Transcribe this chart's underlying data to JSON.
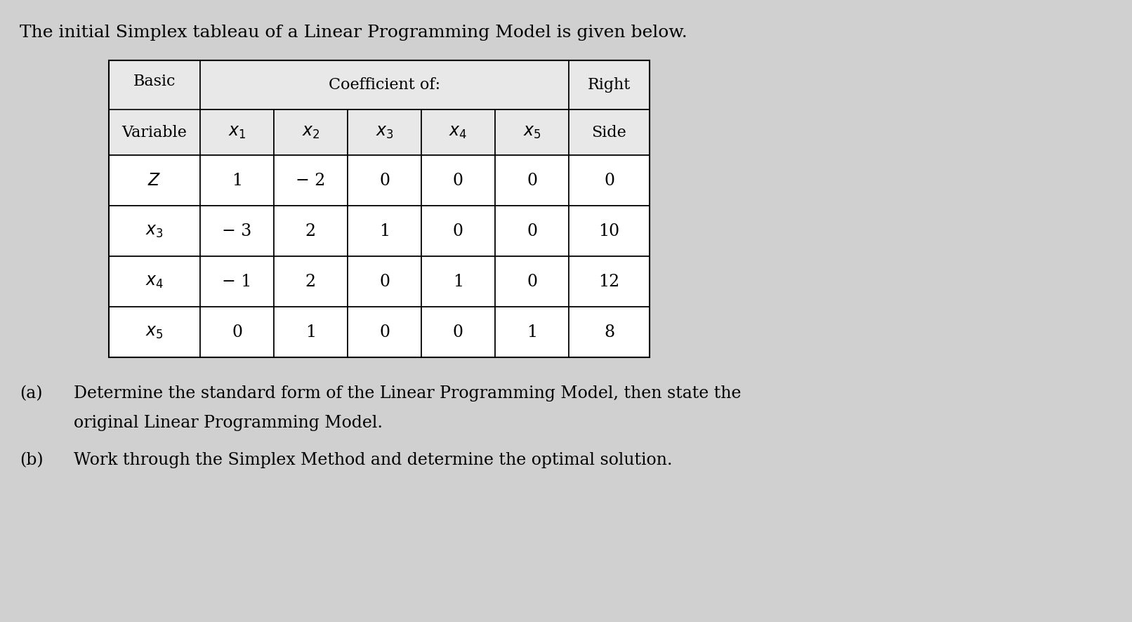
{
  "title": "The initial Simplex tableau of a Linear Programming Model is given below.",
  "bg_color": "#d0d0d0",
  "table_bg": "#ffffff",
  "header_bg": "#e8e8e8",
  "col_headers": [
    "$x_1$",
    "$x_2$",
    "$x_3$",
    "$x_4$",
    "$x_5$"
  ],
  "row_labels": [
    "$Z$",
    "$x_3$",
    "$x_4$",
    "$x_5$"
  ],
  "rows": [
    [
      "1",
      "− 2",
      "0",
      "0",
      "0",
      "0"
    ],
    [
      "− 3",
      "2",
      "1",
      "0",
      "0",
      "10"
    ],
    [
      "− 1",
      "2",
      "0",
      "1",
      "0",
      "12"
    ],
    [
      "0",
      "1",
      "0",
      "0",
      "1",
      "8"
    ]
  ],
  "part_a_label": "(a)",
  "part_a_line1": "Determine the standard form of the Linear Programming Model, then state the",
  "part_a_line2": "original Linear Programming Model.",
  "part_b_label": "(b)",
  "part_b_line1": "Work through the Simplex Method and determine the optimal solution.",
  "font_size_title": 18,
  "font_size_table_header": 16,
  "font_size_table_data": 17,
  "font_size_parts": 17
}
